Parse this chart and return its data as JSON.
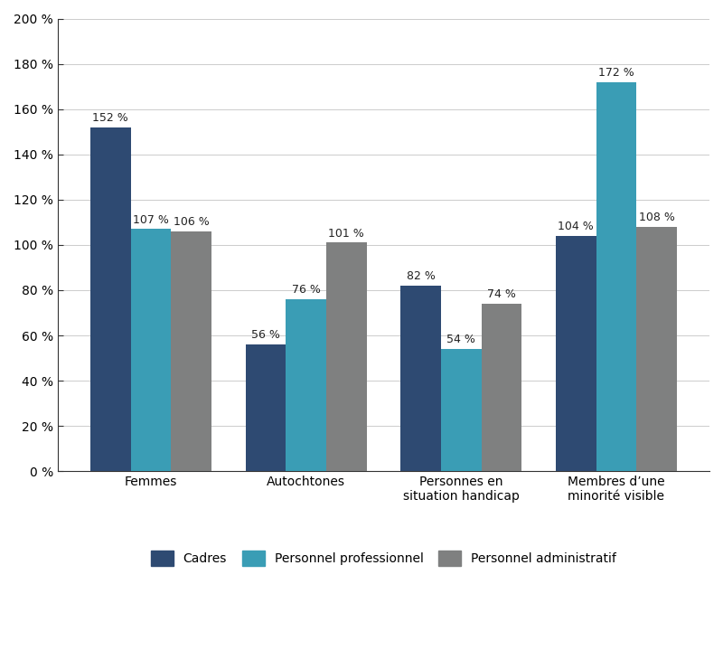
{
  "categories": [
    "Femmes",
    "Autochtones",
    "Personnes en\nsituation handicap",
    "Membres d’une\nminorité visible"
  ],
  "series": {
    "Cadres": [
      152,
      56,
      82,
      104
    ],
    "Personnel professionnel": [
      107,
      76,
      54,
      172
    ],
    "Personnel administratif": [
      106,
      101,
      74,
      108
    ]
  },
  "colors": {
    "Cadres": "#2e4a72",
    "Personnel professionnel": "#3a9db5",
    "Personnel administratif": "#7f8080"
  },
  "ylim": [
    0,
    200
  ],
  "yticks": [
    0,
    20,
    40,
    60,
    80,
    100,
    120,
    140,
    160,
    180,
    200
  ],
  "bar_width": 0.26,
  "label_fontsize": 9,
  "tick_fontsize": 10,
  "legend_fontsize": 10,
  "background_color": "#ffffff",
  "grid_color": "#cccccc",
  "spine_color": "#333333"
}
